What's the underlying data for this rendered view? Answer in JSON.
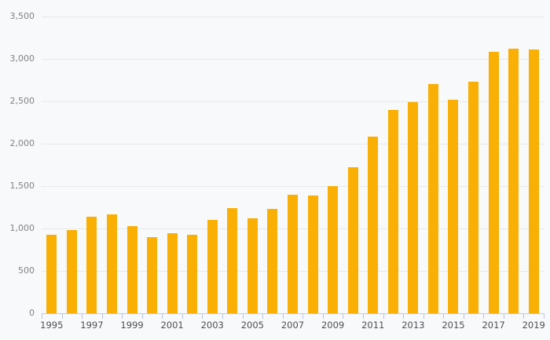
{
  "chart_data": {
    "type": "bar",
    "title": "",
    "xlabel": "",
    "ylabel": "",
    "categories": [
      "1995",
      "1996",
      "1997",
      "1998",
      "1999",
      "2000",
      "2001",
      "2002",
      "2003",
      "2004",
      "2005",
      "2006",
      "2007",
      "2008",
      "2009",
      "2010",
      "2011",
      "2012",
      "2013",
      "2014",
      "2015",
      "2016",
      "2017",
      "2018",
      "2019"
    ],
    "values": [
      930,
      980,
      1135,
      1170,
      1030,
      900,
      940,
      930,
      1105,
      1245,
      1120,
      1235,
      1400,
      1385,
      1500,
      1725,
      2080,
      2395,
      2490,
      2700,
      2515,
      2730,
      3085,
      3125,
      3115
    ],
    "ylim": [
      0,
      3500
    ],
    "grid": true,
    "legend": false,
    "y_ticks": [
      {
        "value": 0,
        "label": "0"
      },
      {
        "value": 500,
        "label": "500"
      },
      {
        "value": 1000,
        "label": "1,000"
      },
      {
        "value": 1500,
        "label": "1,500"
      },
      {
        "value": 2000,
        "label": "2,000"
      },
      {
        "value": 2500,
        "label": "2,500"
      },
      {
        "value": 3000,
        "label": "3,000"
      },
      {
        "value": 3500,
        "label": "3,500"
      }
    ],
    "x_tick_labels": [
      "1995",
      "1997",
      "1999",
      "2001",
      "2003",
      "2005",
      "2007",
      "2009",
      "2011",
      "2013",
      "2015",
      "2017",
      "2019"
    ],
    "colors": {
      "bar": "#FAAF05",
      "background": "#F8F9FA",
      "gridline": "#E7E8EA",
      "axis_line": "#C3CBDD",
      "tick_mark": "#B9C4DE",
      "y_label_text": "#808387",
      "x_label_text": "#4C4F54"
    }
  }
}
